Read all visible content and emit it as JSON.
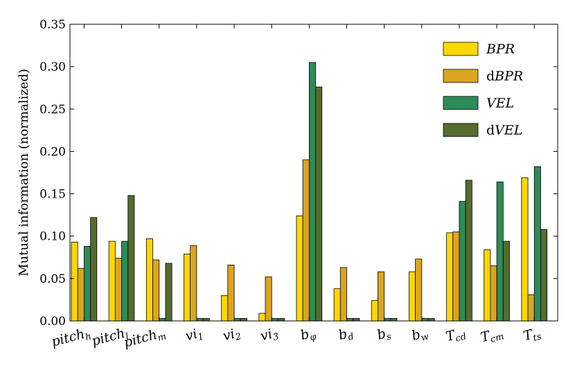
{
  "chart_data": {
    "type": "bar",
    "ylabel": "Mutual information (normalized)",
    "ylim": [
      0,
      0.35
    ],
    "yticks": [
      0.0,
      0.05,
      0.1,
      0.15,
      0.2,
      0.25,
      0.3,
      0.35
    ],
    "ytick_labels": [
      "0.00",
      "0.05",
      "0.10",
      "0.15",
      "0.20",
      "0.25",
      "0.30",
      "0.35"
    ],
    "categories": [
      {
        "base": "pitch",
        "sub": "h"
      },
      {
        "base": "pitch",
        "sub": "l"
      },
      {
        "base": "pitch",
        "sub": "m"
      },
      {
        "base": "vi",
        "sub": "1"
      },
      {
        "base": "vi",
        "sub": "2"
      },
      {
        "base": "vi",
        "sub": "3"
      },
      {
        "base": "b",
        "sub": "φ"
      },
      {
        "base": "b",
        "sub": "d"
      },
      {
        "base": "b",
        "sub": "s"
      },
      {
        "base": "b",
        "sub": "w"
      },
      {
        "base": "T",
        "sub": "cd"
      },
      {
        "base": "T",
        "sub": "cm"
      },
      {
        "base": "T",
        "sub": "ts"
      }
    ],
    "legend_position": "top-right",
    "grid": false,
    "series": [
      {
        "name": "BPR",
        "prefix": "",
        "color": "#FFD700",
        "values": [
          0.093,
          0.094,
          0.097,
          0.079,
          0.03,
          0.009,
          0.124,
          0.038,
          0.024,
          0.058,
          0.104,
          0.084,
          0.169
        ]
      },
      {
        "name": "BPR",
        "prefix": "d",
        "color": "#DAA520",
        "values": [
          0.062,
          0.074,
          0.072,
          0.089,
          0.066,
          0.052,
          0.19,
          0.063,
          0.058,
          0.073,
          0.105,
          0.065,
          0.031
        ]
      },
      {
        "name": "VEL",
        "prefix": "",
        "color": "#2E8B57",
        "values": [
          0.088,
          0.094,
          0.003,
          0.003,
          0.003,
          0.003,
          0.305,
          0.003,
          0.003,
          0.003,
          0.141,
          0.164,
          0.182
        ]
      },
      {
        "name": "VEL",
        "prefix": "d",
        "color": "#556B2F",
        "values": [
          0.122,
          0.148,
          0.068,
          0.003,
          0.003,
          0.003,
          0.276,
          0.003,
          0.003,
          0.003,
          0.166,
          0.094,
          0.108
        ]
      }
    ]
  }
}
